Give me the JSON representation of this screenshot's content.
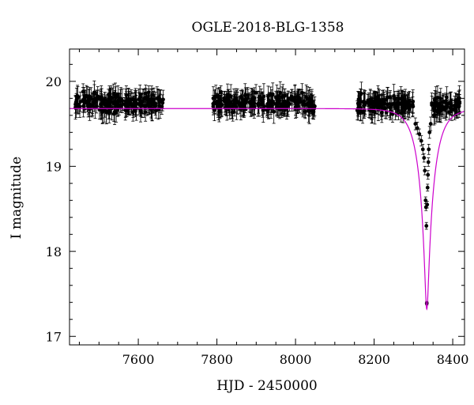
{
  "chart_data": {
    "type": "scatter",
    "title": "OGLE-2018-BLG-1358",
    "xlabel": "HJD - 2450000",
    "ylabel": "I magnitude",
    "xlim": [
      7425,
      8430
    ],
    "ylim": [
      20.38,
      16.9
    ],
    "y_inverted": true,
    "grid": false,
    "x_ticks": [
      7600,
      7800,
      8000,
      8200,
      8400
    ],
    "y_ticks": [
      17,
      18,
      19,
      20
    ],
    "x_tick_labels": [
      "7600",
      "7800",
      "8000",
      "8200",
      "8400"
    ],
    "y_tick_labels": [
      "17",
      "18",
      "19",
      "20"
    ],
    "model_color": "#cc00cc",
    "marker_color": "#000000",
    "series": [
      {
        "kind": "observations-with-errorbars",
        "seasons": [
          {
            "x_range": [
              7440,
              7665
            ],
            "mean_mag": 19.75,
            "scatter": 0.13,
            "n": 220
          },
          {
            "x_range": [
              7790,
              8050
            ],
            "mean_mag": 19.75,
            "scatter": 0.13,
            "n": 230
          },
          {
            "x_range": [
              8155,
              8300
            ],
            "mean_mag": 19.73,
            "scatter": 0.12,
            "n": 140
          },
          {
            "x_range": [
              8345,
              8420
            ],
            "mean_mag": 19.72,
            "scatter": 0.11,
            "n": 70
          }
        ],
        "event_points": [
          {
            "x": 8305,
            "y": 19.5,
            "err": 0.07
          },
          {
            "x": 8310,
            "y": 19.45,
            "err": 0.07
          },
          {
            "x": 8315,
            "y": 19.38,
            "err": 0.06
          },
          {
            "x": 8320,
            "y": 19.3,
            "err": 0.06
          },
          {
            "x": 8324,
            "y": 19.2,
            "err": 0.06
          },
          {
            "x": 8327,
            "y": 19.1,
            "err": 0.05
          },
          {
            "x": 8329,
            "y": 18.95,
            "err": 0.05
          },
          {
            "x": 8331,
            "y": 18.6,
            "err": 0.04
          },
          {
            "x": 8332,
            "y": 18.52,
            "err": 0.04
          },
          {
            "x": 8333,
            "y": 18.3,
            "err": 0.04
          },
          {
            "x": 8334,
            "y": 17.39,
            "err": 0.02
          },
          {
            "x": 8335,
            "y": 18.55,
            "err": 0.04
          },
          {
            "x": 8336,
            "y": 18.75,
            "err": 0.04
          },
          {
            "x": 8337,
            "y": 18.9,
            "err": 0.05
          },
          {
            "x": 8338,
            "y": 19.05,
            "err": 0.05
          },
          {
            "x": 8339,
            "y": 19.2,
            "err": 0.06
          },
          {
            "x": 8341,
            "y": 19.4,
            "err": 0.07
          },
          {
            "x": 8344,
            "y": 19.5,
            "err": 0.08
          }
        ]
      },
      {
        "kind": "model-curve",
        "baseline_mag": 19.68,
        "peak_x": 8334,
        "peak_mag": 17.32,
        "tE_days": 38,
        "u0": 0.12
      }
    ]
  }
}
